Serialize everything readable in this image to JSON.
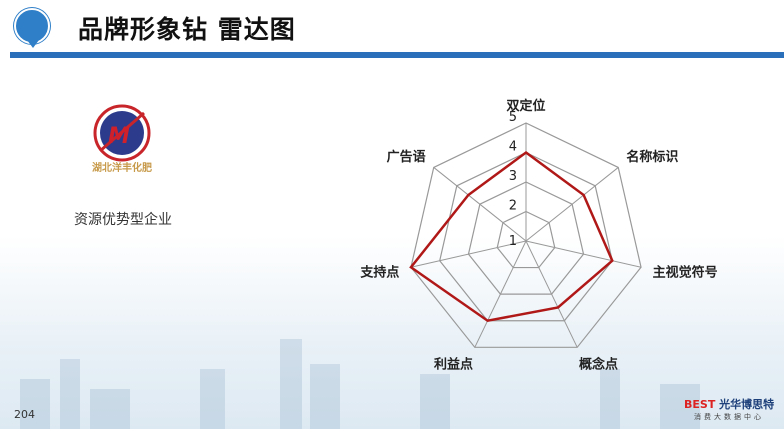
{
  "header": {
    "title": "品牌形象钻 雷达图"
  },
  "company": {
    "logo_text": "湖北洋丰化肥",
    "description": "资源优势型企业"
  },
  "page_number": "204",
  "footer_brand": {
    "logo": "BEST",
    "name": "光华博思特",
    "tagline": "消费大数据中心"
  },
  "colors": {
    "accent": "#2a6fba",
    "series": "#b01818",
    "grid": "#999999"
  },
  "chart_data": {
    "type": "radar",
    "categories": [
      "双定位",
      "名称标识",
      "主视觉符号",
      "概念点",
      "利益点",
      "支持点",
      "广告语"
    ],
    "ticks": [
      "1",
      "2",
      "3",
      "4",
      "5"
    ],
    "range": [
      1,
      5
    ],
    "series": [
      {
        "values": [
          4,
          3.5,
          4,
          3.5,
          4,
          5,
          3.5
        ]
      }
    ],
    "legend": "none"
  }
}
